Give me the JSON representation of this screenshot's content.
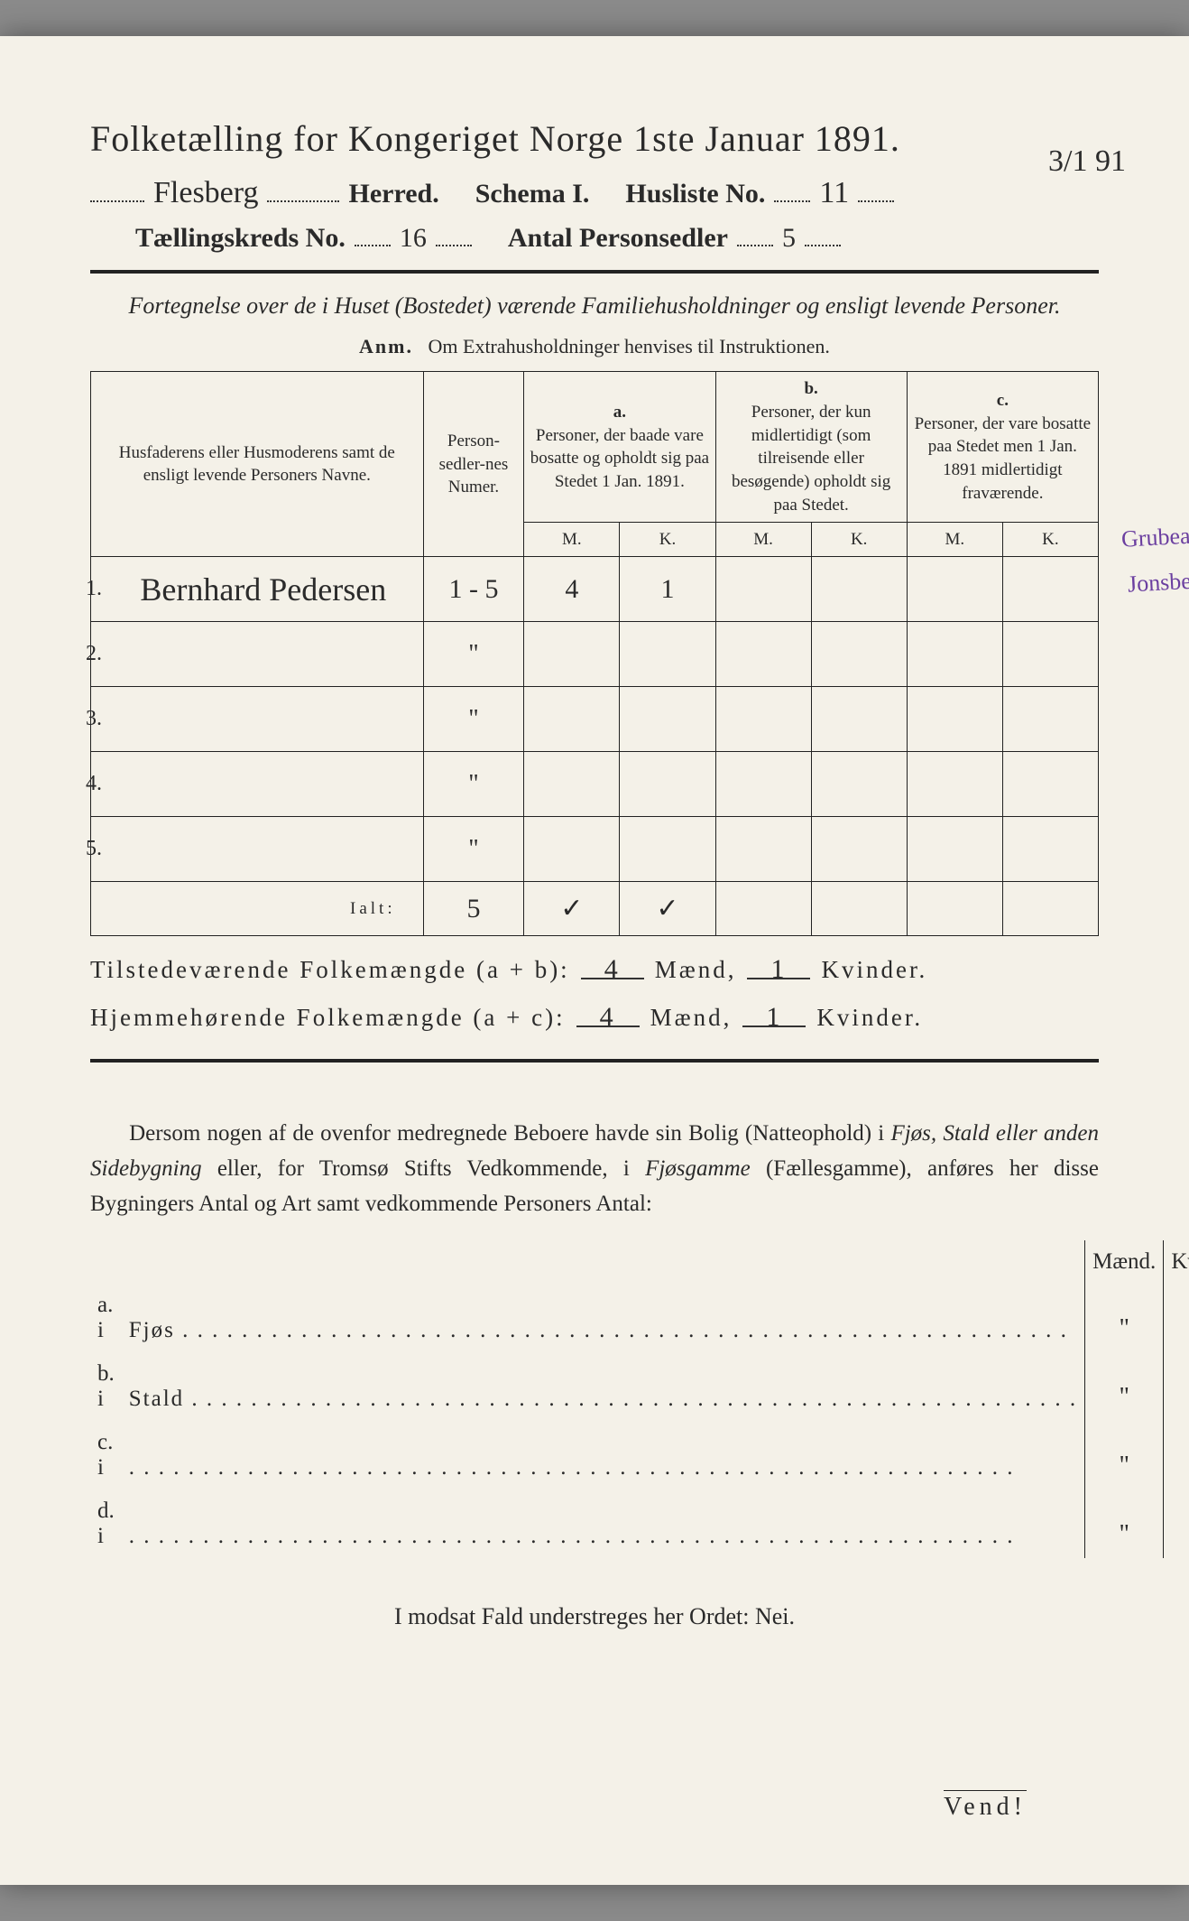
{
  "title": "Folketælling for Kongeriget Norge 1ste Januar 1891.",
  "herred_value": "Flesberg",
  "herred_label": "Herred.",
  "schema_label": "Schema I.",
  "husliste_label": "Husliste No.",
  "husliste_value": "11",
  "corner_date": "3/1 91",
  "kreds_label": "Tællingskreds No.",
  "kreds_value": "16",
  "antal_label": "Antal Personsedler",
  "antal_value": "5",
  "subtitle": "Fortegnelse over de i Huset (Bostedet) værende Familiehusholdninger og ensligt levende Personer.",
  "anm_lbl": "Anm.",
  "anm_text": "Om Extrahusholdninger henvises til Instruktionen.",
  "col_name": "Husfaderens eller Husmoderens samt de ensligt levende Personers Navne.",
  "col_num": "Person-sedler-nes Numer.",
  "grp_a_lbl": "a.",
  "grp_a_txt": "Personer, der baade vare bosatte og opholdt sig paa Stedet 1 Jan. 1891.",
  "grp_b_lbl": "b.",
  "grp_b_txt": "Personer, der kun midlertidigt (som tilreisende eller besøgende) opholdt sig paa Stedet.",
  "grp_c_lbl": "c.",
  "grp_c_txt": "Personer, der vare bosatte paa Stedet men 1 Jan. 1891 midlertidigt fraværende.",
  "mk_m": "M.",
  "mk_k": "K.",
  "rows": [
    {
      "n": "1.",
      "name": "Bernhard Pedersen",
      "num": "1 - 5",
      "am": "4",
      "ak": "1",
      "bm": "",
      "bk": "",
      "cm": "",
      "ck": ""
    },
    {
      "n": "2.",
      "name": "",
      "num": "\"",
      "am": "",
      "ak": "",
      "bm": "",
      "bk": "",
      "cm": "",
      "ck": ""
    },
    {
      "n": "3.",
      "name": "",
      "num": "\"",
      "am": "",
      "ak": "",
      "bm": "",
      "bk": "",
      "cm": "",
      "ck": ""
    },
    {
      "n": "4.",
      "name": "",
      "num": "\"",
      "am": "",
      "ak": "",
      "bm": "",
      "bk": "",
      "cm": "",
      "ck": ""
    },
    {
      "n": "5.",
      "name": "",
      "num": "\"",
      "am": "",
      "ak": "",
      "bm": "",
      "bk": "",
      "cm": "",
      "ck": ""
    }
  ],
  "ialt_lbl": "Ialt:",
  "ialt_num": "5",
  "ialt_am": "✓",
  "ialt_ak": "✓",
  "sum1_lbl": "Tilstedeværende Folkemængde (a + b):",
  "sum1_m": "4",
  "sum1_k": "1",
  "sum2_lbl": "Hjemmehørende Folkemængde (a + c):",
  "sum2_m": "4",
  "sum2_k": "1",
  "maend": "Mænd,",
  "kvinder": "Kvinder.",
  "para": "Dersom nogen af de ovenfor medregnede Beboere havde sin Bolig (Natteophold) i Fjøs, Stald eller anden Sidebygning eller, for Tromsø Stifts Vedkommende, i Fjøsgamme (Fællesgamme), anføres her disse Bygningers Antal og Art samt vedkommende Personers Antal:",
  "lower_head_m": "Mænd.",
  "lower_head_k": "Kvinder.",
  "lower_rows": [
    {
      "lbl": "a.  i",
      "txt": "Fjøs",
      "m": "\"",
      "k": "\""
    },
    {
      "lbl": "b.  i",
      "txt": "Stald",
      "m": "\"",
      "k": "\""
    },
    {
      "lbl": "c.  i",
      "txt": "",
      "m": "\"",
      "k": "\""
    },
    {
      "lbl": "d.  i",
      "txt": "",
      "m": "\"",
      "k": "\""
    }
  ],
  "nei": "I modsat Fald understreges her Ordet: Nei.",
  "vend": "Vend!",
  "margin_note1": "Grubearb.",
  "margin_note2": "Jonsberg.",
  "colors": {
    "paper": "#f4f1e8",
    "ink": "#2a2a2a",
    "purple": "#6b3fa0",
    "bg": "#8a8a8a"
  }
}
